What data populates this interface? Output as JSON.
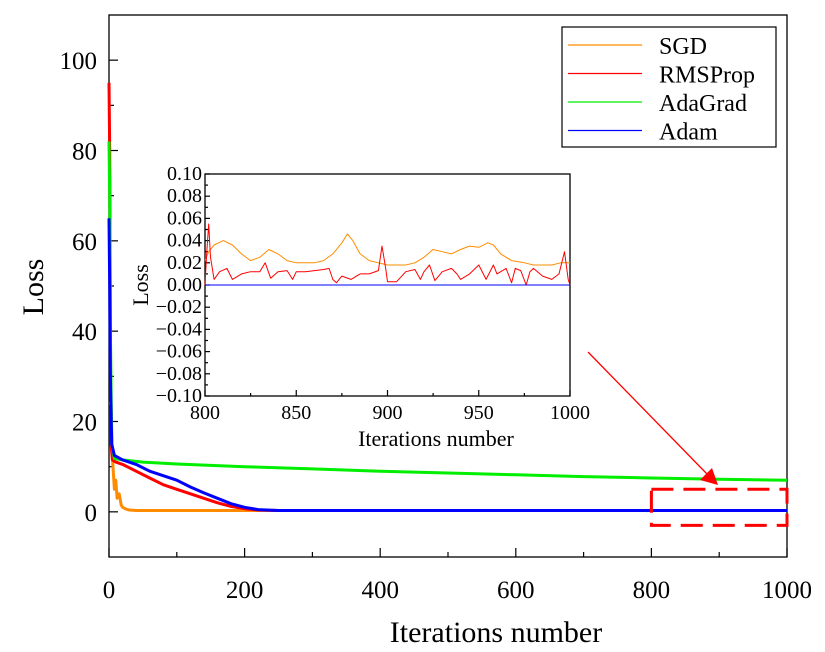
{
  "chart_data": [
    {
      "id": "main",
      "type": "line",
      "xlabel": "Iterations number",
      "ylabel": "Loss",
      "xlim": [
        0,
        1000
      ],
      "ylim": [
        -10,
        110
      ],
      "xticks": [
        0,
        200,
        400,
        600,
        800,
        1000
      ],
      "yticks": [
        0,
        20,
        40,
        60,
        80,
        100
      ],
      "grid": false,
      "legend_position": "top-right",
      "series": [
        {
          "name": "SGD",
          "color": "#ff8c00",
          "points": [
            [
              0,
              24
            ],
            [
              3,
              24
            ],
            [
              5,
              12
            ],
            [
              8,
              5
            ],
            [
              10,
              7
            ],
            [
              12,
              3
            ],
            [
              15,
              4
            ],
            [
              18,
              1.5
            ],
            [
              20,
              1
            ],
            [
              25,
              0.6
            ],
            [
              30,
              0.4
            ],
            [
              40,
              0.3
            ],
            [
              60,
              0.3
            ],
            [
              100,
              0.3
            ],
            [
              200,
              0.3
            ],
            [
              400,
              0.3
            ],
            [
              600,
              0.3
            ],
            [
              700,
              0.3
            ]
          ]
        },
        {
          "name": "RMSProp",
          "color": "#ff0000",
          "points": [
            [
              0,
              95
            ],
            [
              1,
              80
            ],
            [
              2,
              40
            ],
            [
              3,
              15
            ],
            [
              5,
              11.5
            ],
            [
              10,
              11
            ],
            [
              20,
              10.5
            ],
            [
              40,
              9
            ],
            [
              60,
              7.5
            ],
            [
              80,
              6
            ],
            [
              100,
              5
            ],
            [
              120,
              4
            ],
            [
              140,
              3
            ],
            [
              160,
              2
            ],
            [
              180,
              1.2
            ],
            [
              200,
              0.7
            ],
            [
              220,
              0.4
            ],
            [
              250,
              0.3
            ],
            [
              300,
              0.3
            ],
            [
              400,
              0.3
            ],
            [
              500,
              0.3
            ],
            [
              600,
              0.3
            ],
            [
              700,
              0.3
            ]
          ]
        },
        {
          "name": "AdaGrad",
          "color": "#00ee00",
          "points": [
            [
              0,
              82
            ],
            [
              1,
              70
            ],
            [
              2,
              40
            ],
            [
              4,
              15
            ],
            [
              8,
              11.8
            ],
            [
              20,
              11.5
            ],
            [
              50,
              11
            ],
            [
              100,
              10.6
            ],
            [
              200,
              10
            ],
            [
              300,
              9.5
            ],
            [
              400,
              9
            ],
            [
              500,
              8.6
            ],
            [
              600,
              8.2
            ],
            [
              700,
              7.8
            ],
            [
              800,
              7.5
            ],
            [
              900,
              7.2
            ],
            [
              1000,
              7
            ]
          ]
        },
        {
          "name": "Adam",
          "color": "#0000ff",
          "points": [
            [
              0,
              65
            ],
            [
              1,
              50
            ],
            [
              2,
              30
            ],
            [
              4,
              15
            ],
            [
              8,
              12.5
            ],
            [
              20,
              11.5
            ],
            [
              40,
              10.5
            ],
            [
              60,
              9
            ],
            [
              80,
              8
            ],
            [
              100,
              7
            ],
            [
              120,
              5.5
            ],
            [
              140,
              4.2
            ],
            [
              160,
              3
            ],
            [
              180,
              1.8
            ],
            [
              200,
              1
            ],
            [
              220,
              0.5
            ],
            [
              250,
              0.3
            ],
            [
              300,
              0.3
            ],
            [
              400,
              0.3
            ],
            [
              600,
              0.3
            ],
            [
              800,
              0.3
            ],
            [
              1000,
              0.3
            ]
          ]
        }
      ],
      "annotations": [
        {
          "type": "dashed-rectangle",
          "color": "#ff0000",
          "x_range": [
            800,
            1000
          ],
          "y_range": [
            -3,
            5
          ]
        },
        {
          "type": "arrow",
          "color": "#ff0000",
          "from": [
            840,
            45
          ],
          "to": [
            895,
            6
          ]
        }
      ]
    },
    {
      "id": "inset",
      "type": "line",
      "xlabel": "Iterations number",
      "ylabel": "Loss",
      "xlim": [
        800,
        1000
      ],
      "ylim": [
        -0.1,
        0.1
      ],
      "xticks": [
        800,
        850,
        900,
        950,
        1000
      ],
      "xtick_labels": [
        "800",
        "850",
        "900",
        "950",
        "1000"
      ],
      "yticks": [
        -0.1,
        -0.08,
        -0.06,
        -0.04,
        -0.02,
        0.0,
        0.02,
        0.04,
        0.06,
        0.08,
        0.1
      ],
      "ytick_labels": [
        "−0.10",
        "−0.08",
        "−0.06",
        "−0.04",
        "−0.02",
        "0.00",
        "0.02",
        "0.04",
        "0.06",
        "0.08",
        "0.10"
      ],
      "grid": false,
      "series": [
        {
          "name": "SGD",
          "color": "#ff8c00",
          "points": [
            [
              800,
              0.022
            ],
            [
              802,
              0.03
            ],
            [
              805,
              0.036
            ],
            [
              810,
              0.04
            ],
            [
              815,
              0.036
            ],
            [
              820,
              0.028
            ],
            [
              825,
              0.022
            ],
            [
              830,
              0.025
            ],
            [
              835,
              0.032
            ],
            [
              840,
              0.028
            ],
            [
              845,
              0.022
            ],
            [
              850,
              0.02
            ],
            [
              860,
              0.02
            ],
            [
              865,
              0.022
            ],
            [
              870,
              0.028
            ],
            [
              875,
              0.038
            ],
            [
              878,
              0.046
            ],
            [
              881,
              0.04
            ],
            [
              885,
              0.028
            ],
            [
              890,
              0.022
            ],
            [
              895,
              0.02
            ],
            [
              900,
              0.018
            ],
            [
              910,
              0.018
            ],
            [
              915,
              0.02
            ],
            [
              920,
              0.025
            ],
            [
              925,
              0.032
            ],
            [
              930,
              0.03
            ],
            [
              935,
              0.028
            ],
            [
              940,
              0.032
            ],
            [
              945,
              0.035
            ],
            [
              950,
              0.034
            ],
            [
              955,
              0.038
            ],
            [
              958,
              0.036
            ],
            [
              962,
              0.028
            ],
            [
              968,
              0.022
            ],
            [
              975,
              0.02
            ],
            [
              980,
              0.018
            ],
            [
              990,
              0.018
            ],
            [
              995,
              0.02
            ],
            [
              1000,
              0.02
            ]
          ]
        },
        {
          "name": "RMSProp",
          "color": "#ff0000",
          "points": [
            [
              800,
              0.0
            ],
            [
              801,
              0.03
            ],
            [
              802,
              0.055
            ],
            [
              803,
              0.025
            ],
            [
              805,
              0.005
            ],
            [
              808,
              0.012
            ],
            [
              812,
              0.015
            ],
            [
              815,
              0.005
            ],
            [
              820,
              0.01
            ],
            [
              825,
              0.012
            ],
            [
              830,
              0.012
            ],
            [
              833,
              0.02
            ],
            [
              836,
              0.006
            ],
            [
              840,
              0.012
            ],
            [
              845,
              0.013
            ],
            [
              848,
              0.005
            ],
            [
              850,
              0.012
            ],
            [
              855,
              0.012
            ],
            [
              860,
              0.013
            ],
            [
              865,
              0.014
            ],
            [
              868,
              0.015
            ],
            [
              870,
              0.005
            ],
            [
              872,
              0.002
            ],
            [
              875,
              0.008
            ],
            [
              880,
              0.005
            ],
            [
              885,
              0.01
            ],
            [
              890,
              0.01
            ],
            [
              895,
              0.013
            ],
            [
              897,
              0.035
            ],
            [
              899,
              0.015
            ],
            [
              900,
              0.003
            ],
            [
              905,
              0.003
            ],
            [
              910,
              0.012
            ],
            [
              915,
              0.014
            ],
            [
              918,
              0.005
            ],
            [
              920,
              0.012
            ],
            [
              923,
              0.018
            ],
            [
              926,
              0.004
            ],
            [
              930,
              0.012
            ],
            [
              935,
              0.015
            ],
            [
              938,
              0.01
            ],
            [
              940,
              0.005
            ],
            [
              945,
              0.01
            ],
            [
              950,
              0.018
            ],
            [
              954,
              0.005
            ],
            [
              958,
              0.018
            ],
            [
              960,
              0.01
            ],
            [
              965,
              0.015
            ],
            [
              968,
              0.002
            ],
            [
              970,
              0.015
            ],
            [
              973,
              0.013
            ],
            [
              976,
              0.0
            ],
            [
              978,
              0.012
            ],
            [
              980,
              0.015
            ],
            [
              985,
              0.008
            ],
            [
              990,
              0.005
            ],
            [
              994,
              0.01
            ],
            [
              997,
              0.03
            ],
            [
              999,
              0.005
            ],
            [
              1000,
              0.0
            ]
          ]
        },
        {
          "name": "Adam",
          "color": "#0000ff",
          "points": [
            [
              800,
              0.0
            ],
            [
              1000,
              0.0
            ]
          ]
        }
      ]
    }
  ],
  "legend": [
    {
      "label": "SGD",
      "color": "#ff8c00"
    },
    {
      "label": "RMSProp",
      "color": "#ff0000"
    },
    {
      "label": "AdaGrad",
      "color": "#00ee00"
    },
    {
      "label": "Adam",
      "color": "#0000ff"
    }
  ]
}
